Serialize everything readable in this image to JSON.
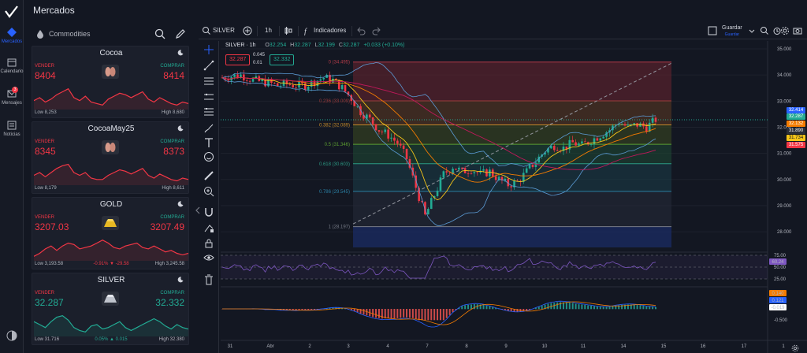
{
  "nav": {
    "items": [
      {
        "label": "Mercados",
        "icon": "markets-icon",
        "active": true
      },
      {
        "label": "Calendario",
        "icon": "calendar-icon"
      },
      {
        "label": "Mensajes",
        "icon": "messages-icon",
        "badge": "3"
      },
      {
        "label": "Noticias",
        "icon": "news-icon"
      }
    ]
  },
  "header": {
    "title": "Mercados"
  },
  "panel": {
    "category": "Commodities"
  },
  "instruments": [
    {
      "name": "Cocoa",
      "sell_label": "VENDER",
      "buy_label": "COMPRAR",
      "sell": "8404",
      "buy": "8414",
      "change": "",
      "low": "Low 8,253",
      "high": "High 8,680",
      "color": "#f23645",
      "icon": "cocoa-bean-icon",
      "spark": [
        58,
        60,
        57,
        59,
        62,
        64,
        66,
        60,
        58,
        61,
        57,
        56,
        55,
        59,
        61,
        63,
        62,
        60,
        62,
        64,
        59,
        57,
        60,
        58,
        56,
        55,
        57,
        56
      ]
    },
    {
      "name": "CocoaMay25",
      "sell_label": "VENDER",
      "buy_label": "COMPRAR",
      "sell": "8345",
      "buy": "8373",
      "change": "",
      "low": "Low 8,179",
      "high": "High 8,611",
      "color": "#f23645",
      "icon": "cocoa-bean-icon",
      "spark": [
        58,
        60,
        57,
        60,
        63,
        65,
        66,
        60,
        58,
        60,
        56,
        55,
        55,
        58,
        60,
        62,
        61,
        59,
        61,
        63,
        58,
        56,
        59,
        57,
        55,
        54,
        56,
        55
      ]
    },
    {
      "name": "GOLD",
      "sell_label": "VENDER",
      "buy_label": "COMPRAR",
      "sell": "3207.03",
      "buy": "3207.49",
      "change": "-0.91%  ▼ -29.58",
      "low": "Low 3,193.58",
      "high": "High 3,245.58",
      "color": "#f23645",
      "icon": "gold-bar-icon",
      "spark": [
        55,
        57,
        60,
        62,
        59,
        62,
        64,
        63,
        60,
        61,
        62,
        64,
        66,
        64,
        61,
        60,
        62,
        63,
        64,
        61,
        60,
        62,
        60,
        58,
        59,
        57,
        56,
        57
      ]
    },
    {
      "name": "SILVER",
      "sell_label": "VENDER",
      "buy_label": "COMPRAR",
      "sell": "32.287",
      "buy": "32.332",
      "change": "0.05%  ▲ 0.015",
      "low": "Low 31.716",
      "high": "High 32.380",
      "color": "#22ab94",
      "icon": "silver-bar-icon",
      "spark": [
        62,
        60,
        58,
        62,
        65,
        66,
        63,
        58,
        56,
        55,
        59,
        60,
        57,
        58,
        60,
        62,
        58,
        56,
        58,
        60,
        62,
        64,
        62,
        59,
        57,
        60,
        58,
        57
      ]
    }
  ],
  "toolbar": {
    "symbol": "SILVER",
    "interval": "1h",
    "indicators": "Indicadores",
    "save": "Guardar",
    "save_sub": "Guardar"
  },
  "chart_header": {
    "symbol_interval": "SILVER · 1h",
    "o_label": "O",
    "o": "32.254",
    "h_label": "H",
    "h": "32.287",
    "l_label": "L",
    "l": "32.199",
    "c_label": "C",
    "c": "32.287",
    "change": "+0.033 (+0.10%)",
    "sell_price": "32.287",
    "buy_price": "32.332",
    "spread_top": "0.045",
    "spread_bottom": "0.01"
  },
  "chart_data": {
    "type": "candlestick",
    "symbol": "SILVER",
    "interval": "1h",
    "x_ticks": [
      "31",
      "Abr",
      "2",
      "3",
      "4",
      "7",
      "8",
      "9",
      "10",
      "11",
      "14",
      "15",
      "16",
      "17",
      "1"
    ],
    "y_ticks": [
      "35.000",
      "34.000",
      "33.000",
      "32.000",
      "31.000",
      "30.000",
      "29.000",
      "28.000"
    ],
    "ylim": [
      27.4,
      35.0
    ],
    "close_path": [
      [
        0,
        33.9
      ],
      [
        3,
        33.95
      ],
      [
        6,
        34.0
      ],
      [
        9,
        33.85
      ],
      [
        12,
        33.75
      ],
      [
        15,
        33.7
      ],
      [
        18,
        33.6
      ],
      [
        21,
        33.65
      ],
      [
        24,
        33.6
      ],
      [
        27,
        33.6
      ],
      [
        30,
        33.75
      ],
      [
        33,
        33.9
      ],
      [
        36,
        33.8
      ],
      [
        39,
        33.5
      ],
      [
        42,
        33.1
      ],
      [
        45,
        32.6
      ],
      [
        48,
        32.3
      ],
      [
        51,
        31.9
      ],
      [
        54,
        31.7
      ],
      [
        57,
        31.4
      ],
      [
        60,
        30.8
      ],
      [
        63,
        29.7
      ],
      [
        66,
        28.6
      ],
      [
        69,
        29.4
      ],
      [
        72,
        30.2
      ],
      [
        75,
        30.5
      ],
      [
        78,
        30.3
      ],
      [
        81,
        30.4
      ],
      [
        84,
        30.2
      ],
      [
        87,
        30.3
      ],
      [
        90,
        30.0
      ],
      [
        93,
        29.8
      ],
      [
        96,
        29.9
      ],
      [
        99,
        30.3
      ],
      [
        102,
        30.7
      ],
      [
        105,
        31.1
      ],
      [
        108,
        31.3
      ],
      [
        111,
        31.2
      ],
      [
        114,
        31.4
      ],
      [
        117,
        31.3
      ],
      [
        120,
        31.5
      ],
      [
        123,
        31.7
      ],
      [
        126,
        31.9
      ],
      [
        129,
        32.2
      ],
      [
        132,
        32.0
      ],
      [
        135,
        32.1
      ],
      [
        138,
        32.0
      ],
      [
        141,
        32.3
      ]
    ],
    "fibonacci": [
      {
        "level": "0 (34.495)",
        "price": 34.495
      },
      {
        "level": "0.236 (33.009)",
        "price": 33.009
      },
      {
        "level": "0.382 (32.089)",
        "price": 32.089
      },
      {
        "level": "0.5 (31.346)",
        "price": 31.346
      },
      {
        "level": "0.618 (30.603)",
        "price": 30.603
      },
      {
        "level": "0.786 (29.545)",
        "price": 29.545
      },
      {
        "level": "1 (28.197)",
        "price": 28.197
      }
    ],
    "price_labels": [
      {
        "text": "32.414",
        "color": "#2962ff"
      },
      {
        "text": "32.287",
        "color": "#22ab94"
      },
      {
        "text": "32.132",
        "color": "#f57c00"
      },
      {
        "text": "31.890",
        "color": "#2a2e39"
      },
      {
        "text": "31.734",
        "color": "#f5c518"
      },
      {
        "text": "31.575",
        "color": "#f23645"
      }
    ],
    "rsi": {
      "ticks": [
        "75.00",
        "50.00",
        "25.00"
      ],
      "value": "60.24"
    },
    "macd": {
      "ticks": [
        "0.500",
        "-0.500"
      ],
      "labels": [
        "0.140",
        "0.121",
        "-0.019"
      ]
    }
  }
}
